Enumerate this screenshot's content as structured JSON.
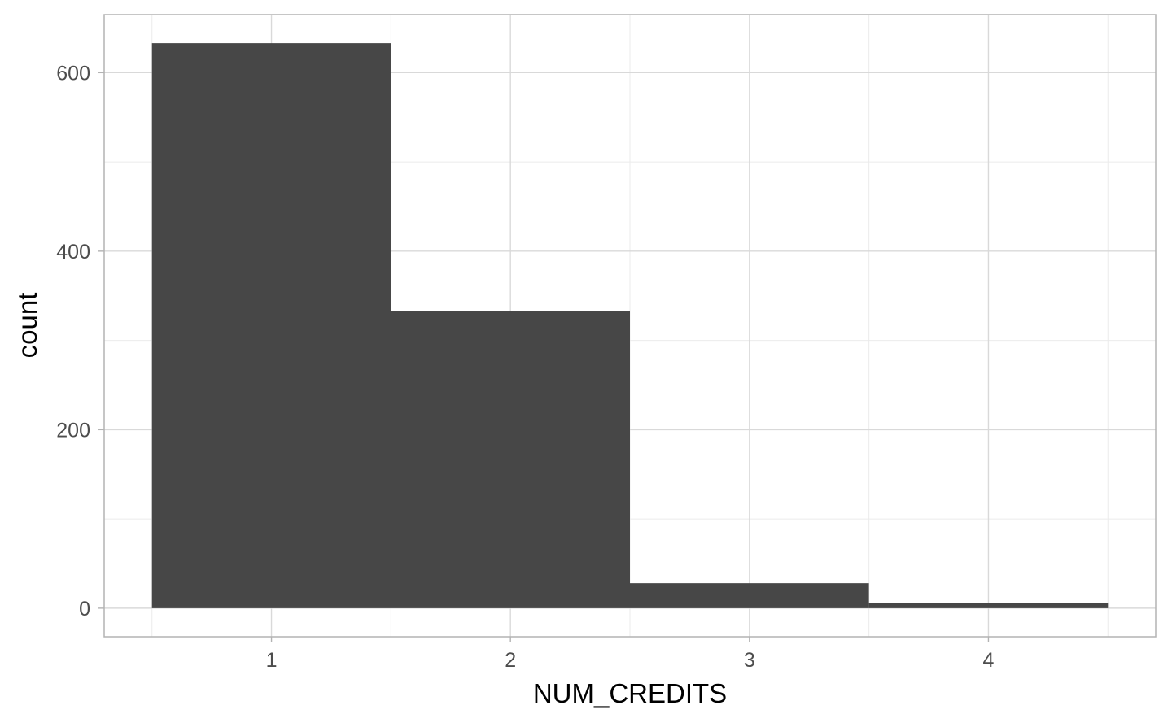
{
  "chart_data": {
    "type": "bar",
    "subtype": "histogram",
    "xlabel": "NUM_CREDITS",
    "ylabel": "count",
    "x_ticks": [
      "1",
      "2",
      "3",
      "4"
    ],
    "y_ticks": [
      "0",
      "200",
      "400",
      "600"
    ],
    "xlim": [
      0.3,
      4.7
    ],
    "ylim": [
      -32,
      665
    ],
    "bins": [
      {
        "x": 1,
        "x_min": 0.5,
        "x_max": 1.5,
        "value": 633
      },
      {
        "x": 2,
        "x_min": 1.5,
        "x_max": 2.5,
        "value": 333
      },
      {
        "x": 3,
        "x_min": 2.5,
        "x_max": 3.5,
        "value": 28
      },
      {
        "x": 4,
        "x_min": 3.5,
        "x_max": 4.5,
        "value": 6
      }
    ],
    "grid": true,
    "colors": {
      "bar_fill": "#474747",
      "panel_border": "#b3b3b3",
      "grid_major": "#d9d9d9",
      "grid_minor": "#ebebeb",
      "tick_text": "#4d4d4d",
      "axis_title": "#000000"
    }
  }
}
